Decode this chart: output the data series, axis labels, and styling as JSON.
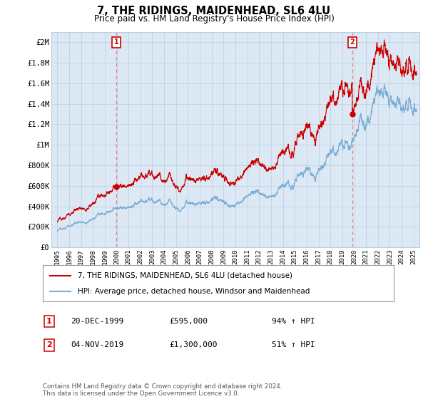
{
  "title": "7, THE RIDINGS, MAIDENHEAD, SL6 4LU",
  "subtitle": "Price paid vs. HM Land Registry's House Price Index (HPI)",
  "xlim": [
    1994.5,
    2025.5
  ],
  "ylim": [
    0,
    2100000
  ],
  "yticks": [
    0,
    200000,
    400000,
    600000,
    800000,
    1000000,
    1200000,
    1400000,
    1600000,
    1800000,
    2000000
  ],
  "ytick_labels": [
    "£0",
    "£200K",
    "£400K",
    "£600K",
    "£800K",
    "£1M",
    "£1.2M",
    "£1.4M",
    "£1.6M",
    "£1.8M",
    "£2M"
  ],
  "transaction1_x": 1999.97,
  "transaction1_y": 595000,
  "transaction1_label": "1",
  "transaction1_date": "20-DEC-1999",
  "transaction1_price": "£595,000",
  "transaction1_hpi": "94% ↑ HPI",
  "transaction2_x": 2019.84,
  "transaction2_y": 1300000,
  "transaction2_label": "2",
  "transaction2_date": "04-NOV-2019",
  "transaction2_price": "£1,300,000",
  "transaction2_hpi": "51% ↑ HPI",
  "hpi_color": "#7aadd4",
  "price_color": "#cc0000",
  "vline_color": "#e88080",
  "chart_bg_color": "#dde8f5",
  "legend_label_price": "7, THE RIDINGS, MAIDENHEAD, SL6 4LU (detached house)",
  "legend_label_hpi": "HPI: Average price, detached house, Windsor and Maidenhead",
  "footer": "Contains HM Land Registry data © Crown copyright and database right 2024.\nThis data is licensed under the Open Government Licence v3.0.",
  "background_color": "#ffffff",
  "grid_color": "#b8cde0"
}
